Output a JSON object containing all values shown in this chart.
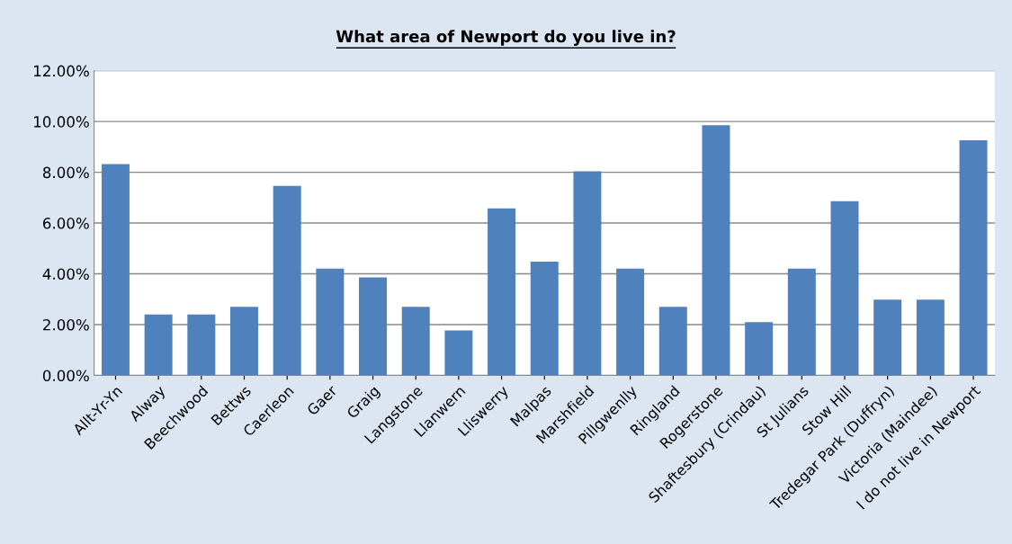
{
  "chart_data": {
    "type": "bar",
    "title": "What area of Newport do you live in?",
    "categories": [
      "Allt-Yr-Yn",
      "Alway",
      "Beechwood",
      "Bettws",
      "Caerleon",
      "Gaer",
      "Graig",
      "Langstone",
      "Llanwern",
      "Lliswerry",
      "Malpas",
      "Marshfield",
      "Pillgwenlly",
      "Ringland",
      "Rogerstone",
      "Shaftesbury (Crindau)",
      "St Julians",
      "Stow Hill",
      "Tredegar Park (Duffryn)",
      "Victoria (Maindee)",
      "I do not live in Newport"
    ],
    "values": [
      8.32,
      2.4,
      2.4,
      2.7,
      7.46,
      4.2,
      3.86,
      2.7,
      1.77,
      6.58,
      4.48,
      8.04,
      4.2,
      2.7,
      9.85,
      2.1,
      4.2,
      6.86,
      2.98,
      2.98,
      9.26
    ],
    "color": "#4f81bd",
    "ylim": [
      0,
      12
    ],
    "yticks": [
      {
        "value": 0,
        "label": "0.00%"
      },
      {
        "value": 2,
        "label": "2.00%"
      },
      {
        "value": 4,
        "label": "4.00%"
      },
      {
        "value": 6,
        "label": "6.00%"
      },
      {
        "value": 8,
        "label": "8.00%"
      },
      {
        "value": 10,
        "label": "10.00%"
      },
      {
        "value": 12,
        "label": "12.00%"
      }
    ],
    "grid": "y"
  }
}
